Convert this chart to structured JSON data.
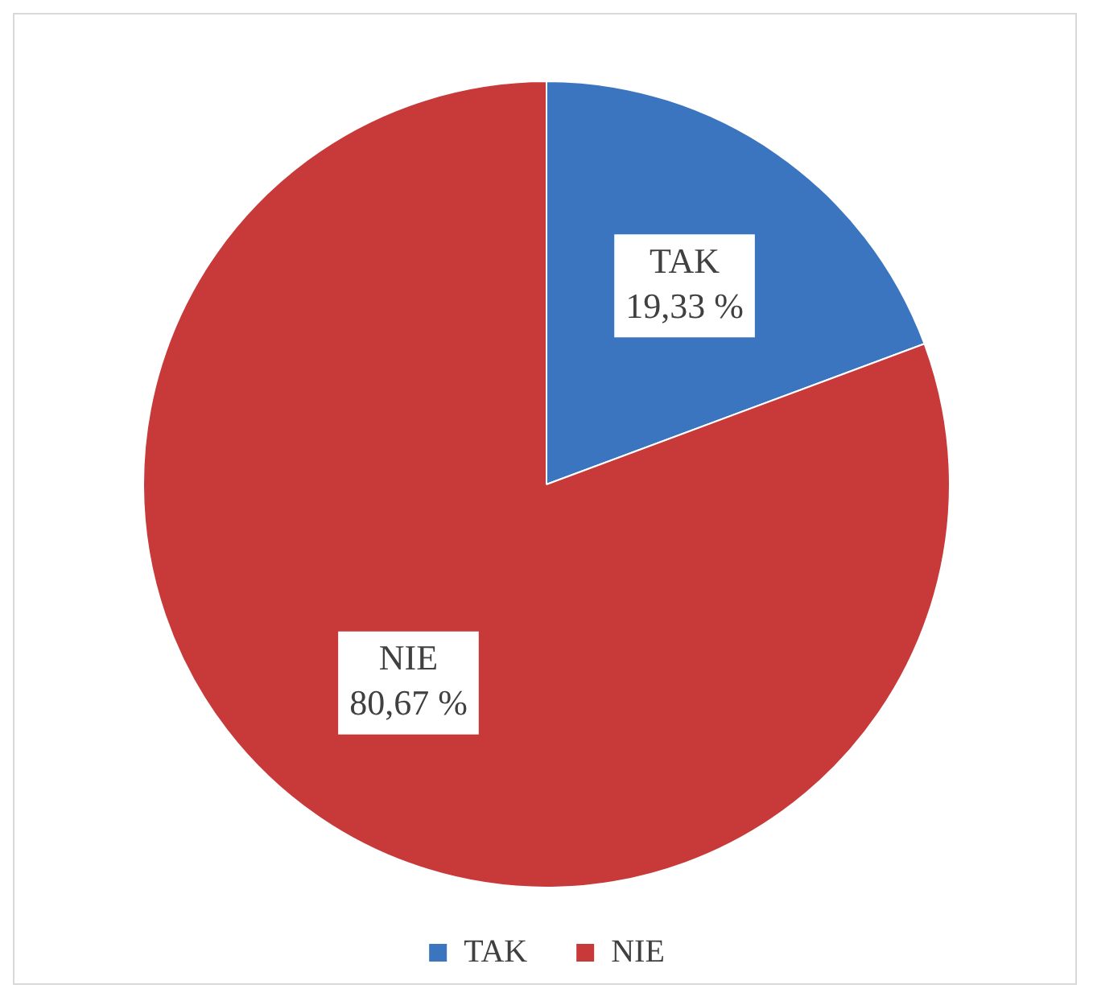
{
  "chart_data": {
    "type": "pie",
    "categories": [
      "TAK",
      "NIE"
    ],
    "values": [
      19.33,
      80.67
    ],
    "colors": [
      "#3b74bf",
      "#c8393a"
    ],
    "value_labels": [
      "19,33 %",
      "80,67 %"
    ],
    "legend": "bottom"
  }
}
